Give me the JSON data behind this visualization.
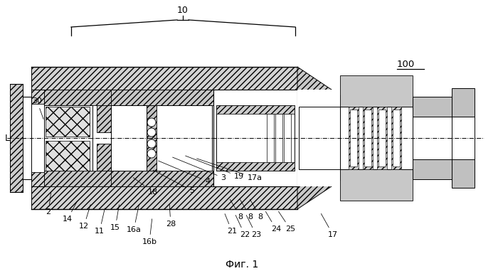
{
  "bg_color": "#ffffff",
  "title": "Фиг. 1",
  "fig_label": "100",
  "brace_label": "10",
  "axis_label": "L",
  "figsize": [
    7.0,
    3.88
  ],
  "dpi": 100
}
